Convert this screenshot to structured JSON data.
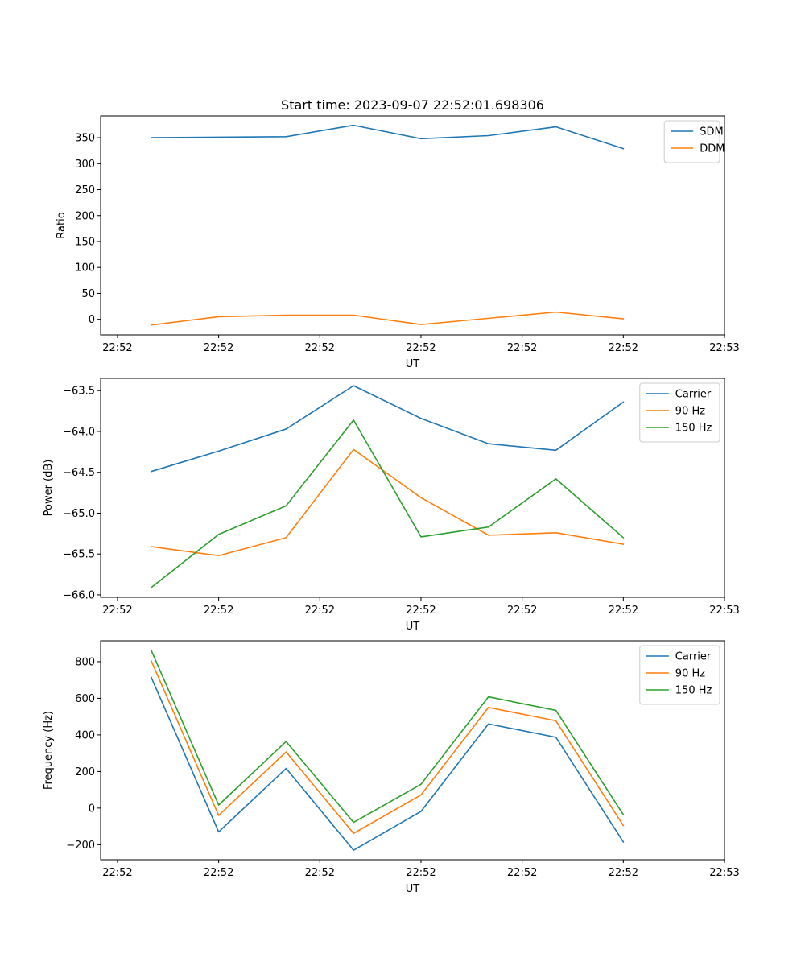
{
  "figure_title": "Start time: 2023-09-07 22:52:01.698306",
  "colors": {
    "blue": "#1f77b4",
    "orange": "#ff7f0e",
    "green": "#2ca02c"
  },
  "chart_data": [
    {
      "type": "line",
      "title": "Start time: 2023-09-07 22:52:01.698306",
      "xlabel": "UT",
      "ylabel": "Ratio",
      "x": [
        1,
        2,
        3,
        4,
        5,
        6,
        7,
        8
      ],
      "xlim": [
        0.25,
        9.5
      ],
      "x_ticks": [
        0.5,
        2,
        3.5,
        5,
        6.5,
        8,
        9.5
      ],
      "x_tick_labels": [
        "22:52",
        "22:52",
        "22:52",
        "22:52",
        "22:52",
        "22:52",
        "22:53"
      ],
      "ylim": [
        -30,
        392
      ],
      "y_ticks": [
        0,
        50,
        100,
        150,
        200,
        250,
        300,
        350
      ],
      "y_tick_labels": [
        "0",
        "50",
        "100",
        "150",
        "200",
        "250",
        "300",
        "350"
      ],
      "legend": "top-right",
      "series": [
        {
          "name": "SDM",
          "color": "#1f77b4",
          "values": [
            350,
            351,
            352,
            374,
            348,
            354,
            371,
            329
          ]
        },
        {
          "name": "DDM",
          "color": "#ff7f0e",
          "values": [
            -11,
            5,
            8,
            8,
            -10,
            2,
            14,
            1
          ]
        }
      ]
    },
    {
      "type": "line",
      "title": "",
      "xlabel": "UT",
      "ylabel": "Power (dB)",
      "x": [
        1,
        2,
        3,
        4,
        5,
        6,
        7,
        8
      ],
      "xlim": [
        0.25,
        9.5
      ],
      "x_ticks": [
        0.5,
        2,
        3.5,
        5,
        6.5,
        8,
        9.5
      ],
      "x_tick_labels": [
        "22:52",
        "22:52",
        "22:52",
        "22:52",
        "22:52",
        "22:52",
        "22:53"
      ],
      "ylim": [
        -66.03,
        -63.35
      ],
      "y_ticks": [
        -66.0,
        -65.5,
        -65.0,
        -64.5,
        -64.0,
        -63.5
      ],
      "y_tick_labels": [
        "−66.0",
        "−65.5",
        "−65.0",
        "−64.5",
        "−64.0",
        "−63.5"
      ],
      "legend": "top-right",
      "series": [
        {
          "name": "Carrier",
          "color": "#1f77b4",
          "values": [
            -64.49,
            -64.24,
            -63.97,
            -63.44,
            -63.84,
            -64.15,
            -64.23,
            -63.64
          ]
        },
        {
          "name": "90 Hz",
          "color": "#ff7f0e",
          "values": [
            -65.41,
            -65.52,
            -65.3,
            -64.22,
            -64.81,
            -65.27,
            -65.24,
            -65.38
          ]
        },
        {
          "name": "150 Hz",
          "color": "#2ca02c",
          "values": [
            -65.91,
            -65.26,
            -64.91,
            -63.86,
            -65.29,
            -65.17,
            -64.58,
            -65.3
          ]
        }
      ]
    },
    {
      "type": "line",
      "title": "",
      "xlabel": "UT",
      "ylabel": "Frequency (Hz)",
      "x": [
        1,
        2,
        3,
        4,
        5,
        6,
        7,
        8
      ],
      "xlim": [
        0.25,
        9.5
      ],
      "x_ticks": [
        0.5,
        2,
        3.5,
        5,
        6.5,
        8,
        9.5
      ],
      "x_tick_labels": [
        "22:52",
        "22:52",
        "22:52",
        "22:52",
        "22:52",
        "22:52",
        "22:53"
      ],
      "ylim": [
        -282,
        914
      ],
      "y_ticks": [
        -200,
        0,
        200,
        400,
        600,
        800
      ],
      "y_tick_labels": [
        "−200",
        "0",
        "200",
        "400",
        "600",
        "800"
      ],
      "legend": "top-right",
      "series": [
        {
          "name": "Carrier",
          "color": "#1f77b4",
          "values": [
            715,
            -130,
            217,
            -230,
            -18,
            460,
            387,
            -185
          ]
        },
        {
          "name": "90 Hz",
          "color": "#ff7f0e",
          "values": [
            805,
            -40,
            307,
            -138,
            72,
            550,
            477,
            -95
          ]
        },
        {
          "name": "150 Hz",
          "color": "#2ca02c",
          "values": [
            862,
            17,
            364,
            -78,
            130,
            608,
            534,
            -36
          ]
        }
      ]
    }
  ]
}
